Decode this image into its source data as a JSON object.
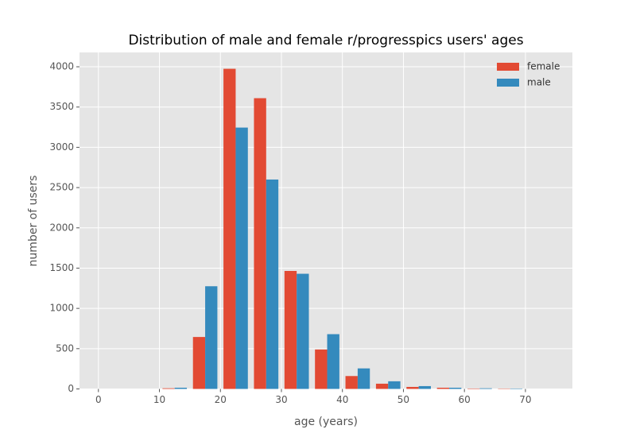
{
  "chart_data": {
    "type": "histogram",
    "title": "Distribution of male and female r/progresspics users' ages",
    "xlabel": "age (years)",
    "ylabel": "number of users",
    "bins": [
      10,
      15,
      20,
      25,
      30,
      35,
      40,
      45,
      50,
      55,
      60,
      65,
      70
    ],
    "series": [
      {
        "name": "female",
        "color": "#E24A33",
        "values": [
          8,
          645,
          3975,
          3610,
          1465,
          490,
          160,
          65,
          25,
          15,
          5,
          4
        ]
      },
      {
        "name": "male",
        "color": "#348ABD",
        "values": [
          15,
          1275,
          3245,
          2600,
          1430,
          680,
          255,
          95,
          35,
          15,
          8,
          5
        ]
      }
    ],
    "rwidth": 0.8,
    "xlim": [
      -3.1,
      77.7
    ],
    "xticks": [
      0,
      10,
      20,
      30,
      40,
      50,
      60,
      70
    ],
    "ylim": [
      0,
      4178
    ],
    "yticks": [
      0,
      500,
      1000,
      1500,
      2000,
      2500,
      3000,
      3500,
      4000
    ],
    "grid": true,
    "legend": "upper right"
  }
}
